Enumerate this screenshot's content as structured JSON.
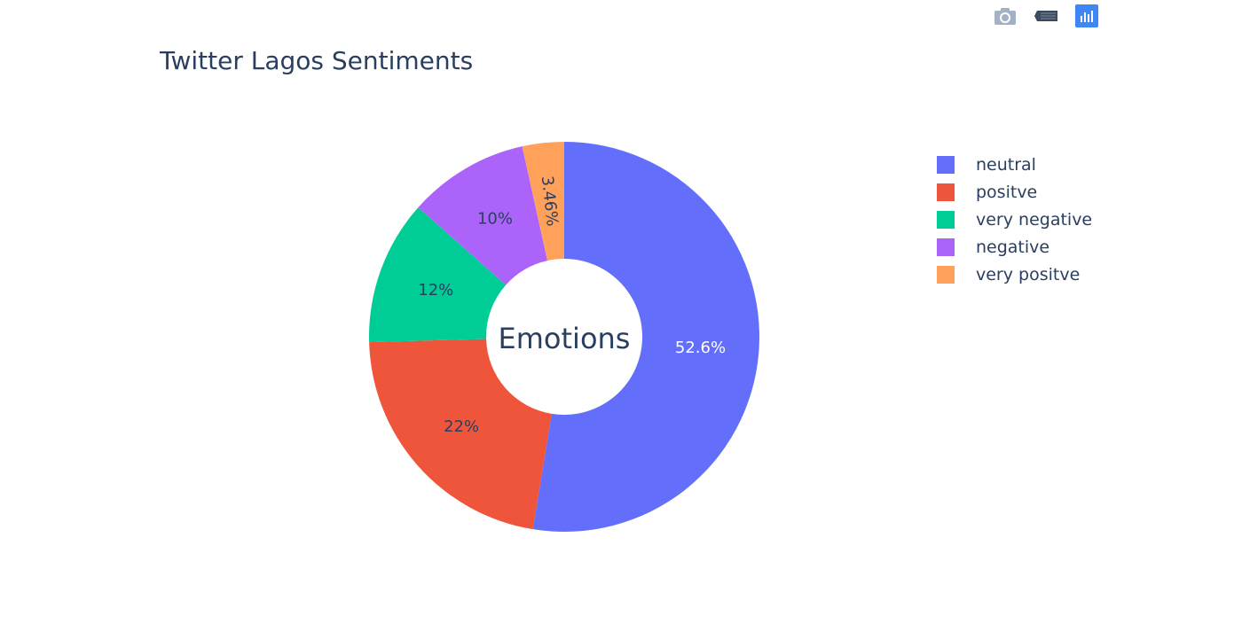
{
  "modebar": {
    "buttons": [
      {
        "name": "camera-icon",
        "title": "Download plot as a png"
      },
      {
        "name": "edit-in-chart-studio-icon",
        "title": "Edit in Chart Studio"
      },
      {
        "name": "plotly-logo-icon",
        "title": "Produced with Plotly"
      }
    ]
  },
  "chart_data": {
    "type": "pie",
    "hole": 0.4,
    "title": "Twitter Lagos Sentiments",
    "center_text": "Emotions",
    "slices": [
      {
        "label": "neutral",
        "percent": 52.6,
        "percent_text": "52.6%",
        "color": "#636efa",
        "text_color": "#ffffff"
      },
      {
        "label": "positve",
        "percent": 22.0,
        "percent_text": "22%",
        "color": "#ef553b",
        "text_color": "#2a3f5f"
      },
      {
        "label": "very negative",
        "percent": 12.0,
        "percent_text": "12%",
        "color": "#00cc96",
        "text_color": "#2a3f5f"
      },
      {
        "label": "negative",
        "percent": 10.0,
        "percent_text": "10%",
        "color": "#ab63fa",
        "text_color": "#2a3f5f"
      },
      {
        "label": "very positve",
        "percent": 3.46,
        "percent_text": "3.46%",
        "color": "#ffa15a",
        "text_color": "#2a3f5f"
      }
    ],
    "legend_position": "top-right",
    "slice_order": "clockwise from top"
  }
}
